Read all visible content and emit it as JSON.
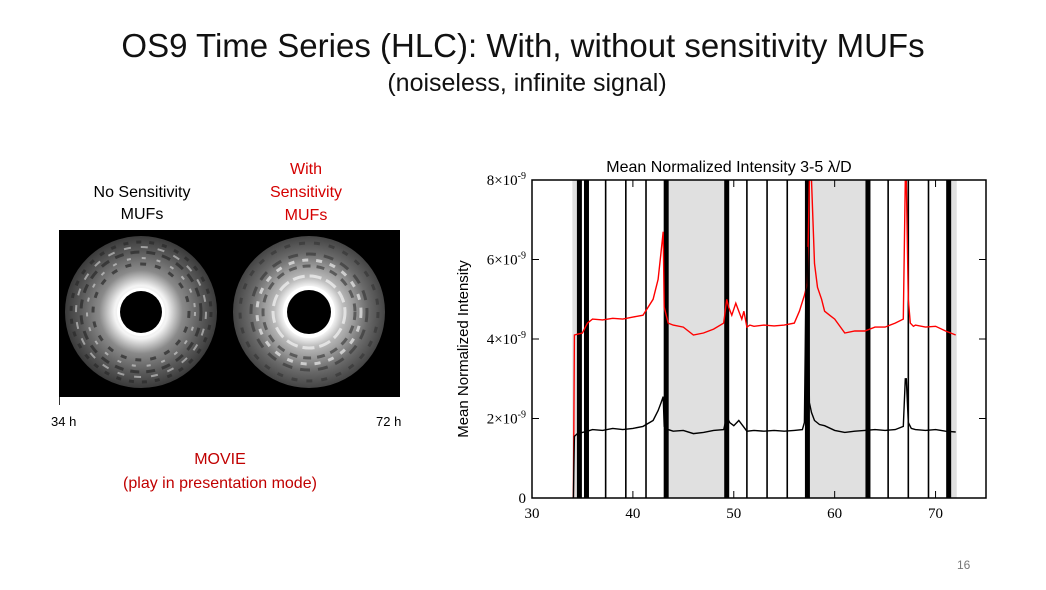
{
  "slide": {
    "title": "OS9 Time Series (HLC): With, without sensitivity MUFs",
    "subtitle": "(noiseless, infinite signal)",
    "page_number": "16"
  },
  "movie": {
    "label_left_line1": "No Sensitivity",
    "label_left_line2": "MUFs",
    "label_right_line1": "With",
    "label_right_line2": "Sensitivity",
    "label_right_line3": "MUFs",
    "time_start": "34 h",
    "time_end": "72 h",
    "note_line1": "MOVIE",
    "note_line2": "(play in presentation mode)"
  },
  "colors": {
    "with_mufs": "#ff0000",
    "without_mufs": "#000000",
    "shade": "#e0e0e0",
    "label_red": "#d40000"
  },
  "chart_data": {
    "type": "line",
    "title": "Mean Normalized Intensity 3-5 λ/D",
    "xlabel": "",
    "ylabel": "Mean Normalized Intensity",
    "xlim": [
      30,
      75
    ],
    "ylim": [
      0,
      8e-09
    ],
    "xticks": [
      30,
      40,
      50,
      60,
      70
    ],
    "ytick_labels": [
      {
        "value": 0,
        "mant": "0",
        "exp": ""
      },
      {
        "value": 2e-09,
        "mant": "2×10",
        "exp": "-9"
      },
      {
        "value": 4e-09,
        "mant": "4×10",
        "exp": "-9"
      },
      {
        "value": 6e-09,
        "mant": "6×10",
        "exp": "-9"
      },
      {
        "value": 8e-09,
        "mant": "8×10",
        "exp": "-9"
      }
    ],
    "shaded_regions": [
      [
        34.0,
        34.6
      ],
      [
        43.3,
        49.3
      ],
      [
        57.4,
        63.3
      ],
      [
        71.3,
        72.1
      ]
    ],
    "vertical_lines": [
      {
        "x": 34.7,
        "thick": true
      },
      {
        "x": 35.4,
        "thick": true
      },
      {
        "x": 37.3,
        "thick": false
      },
      {
        "x": 39.3,
        "thick": false
      },
      {
        "x": 41.3,
        "thick": false
      },
      {
        "x": 43.3,
        "thick": true
      },
      {
        "x": 49.3,
        "thick": true
      },
      {
        "x": 51.3,
        "thick": false
      },
      {
        "x": 53.3,
        "thick": false
      },
      {
        "x": 55.3,
        "thick": false
      },
      {
        "x": 57.3,
        "thick": true
      },
      {
        "x": 63.3,
        "thick": true
      },
      {
        "x": 65.3,
        "thick": false
      },
      {
        "x": 67.3,
        "thick": false
      },
      {
        "x": 69.3,
        "thick": false
      },
      {
        "x": 71.3,
        "thick": true
      }
    ],
    "series": [
      {
        "color": "#ff0000",
        "x": [
          34.1,
          34.2,
          34.5,
          35.0,
          35.5,
          36.0,
          37.0,
          38.0,
          39.0,
          40.0,
          41.0,
          42.0,
          42.5,
          42.8,
          43.0,
          43.1,
          43.5,
          44.0,
          45.0,
          46.0,
          47.0,
          48.0,
          49.0,
          49.3,
          49.5,
          49.8,
          50.2,
          50.5,
          50.8,
          51.0,
          51.3,
          51.6,
          52.0,
          53.0,
          54.0,
          55.0,
          56.0,
          56.5,
          57.0,
          57.3,
          57.5,
          57.7,
          58.0,
          58.3,
          58.7,
          59.0,
          59.5,
          60.0,
          61.0,
          62.0,
          63.0,
          64.0,
          65.0,
          66.0,
          66.8,
          67.0,
          67.1,
          67.3,
          67.5,
          67.8,
          68.0,
          69.0,
          70.0,
          71.0,
          72.0
        ],
        "y": [
          0,
          4.1e-09,
          4.12e-09,
          4.15e-09,
          4.4e-09,
          4.5e-09,
          4.48e-09,
          4.52e-09,
          4.5e-09,
          4.55e-09,
          4.6e-09,
          5e-09,
          5.5e-09,
          6.2e-09,
          6.7e-09,
          4.8e-09,
          4.4e-09,
          4.35e-09,
          4.3e-09,
          4.1e-09,
          4.15e-09,
          4.25e-09,
          4.4e-09,
          5e-09,
          4.8e-09,
          4.6e-09,
          4.9e-09,
          4.7e-09,
          4.5e-09,
          4.7e-09,
          4.3e-09,
          4.35e-09,
          4.32e-09,
          4.35e-09,
          4.33e-09,
          4.35e-09,
          4.4e-09,
          4.7e-09,
          5.1e-09,
          5.4e-09,
          8e-09,
          8e-09,
          5.9e-09,
          5.3e-09,
          5e-09,
          4.7e-09,
          4.6e-09,
          4.5e-09,
          4.15e-09,
          4.2e-09,
          4.2e-09,
          4.3e-09,
          4.3e-09,
          4.4e-09,
          4.5e-09,
          8e-09,
          8e-09,
          5e-09,
          4.4e-09,
          4.32e-09,
          4.35e-09,
          4.3e-09,
          4.32e-09,
          4.2e-09,
          4.1e-09
        ]
      },
      {
        "color": "#000000",
        "x": [
          34.1,
          34.2,
          34.5,
          35.0,
          35.5,
          36.0,
          37.0,
          38.0,
          39.0,
          40.0,
          41.0,
          42.0,
          42.5,
          42.8,
          43.0,
          43.1,
          43.5,
          44.0,
          45.0,
          46.0,
          47.0,
          48.0,
          49.0,
          49.3,
          49.6,
          50.0,
          50.5,
          51.0,
          51.3,
          52.0,
          53.0,
          54.0,
          55.0,
          56.0,
          56.8,
          57.0,
          57.2,
          57.3,
          57.5,
          57.7,
          58.0,
          58.5,
          59.0,
          60.0,
          61.0,
          62.0,
          63.0,
          64.0,
          65.0,
          66.0,
          66.8,
          67.0,
          67.1,
          67.3,
          67.6,
          68.0,
          69.0,
          70.0,
          71.0,
          72.0
        ],
        "y": [
          0,
          1.55e-09,
          1.62e-09,
          1.65e-09,
          1.68e-09,
          1.72e-09,
          1.7e-09,
          1.75e-09,
          1.72e-09,
          1.75e-09,
          1.8e-09,
          1.95e-09,
          2.2e-09,
          2.4e-09,
          2.55e-09,
          1.8e-09,
          1.72e-09,
          1.68e-09,
          1.7e-09,
          1.62e-09,
          1.65e-09,
          1.7e-09,
          1.72e-09,
          2.05e-09,
          1.9e-09,
          1.82e-09,
          1.95e-09,
          1.78e-09,
          1.68e-09,
          1.7e-09,
          1.68e-09,
          1.7e-09,
          1.68e-09,
          1.7e-09,
          1.72e-09,
          1.9e-09,
          6.3e-09,
          6.3e-09,
          2.4e-09,
          2.15e-09,
          1.95e-09,
          1.85e-09,
          1.82e-09,
          1.7e-09,
          1.65e-09,
          1.68e-09,
          1.7e-09,
          1.72e-09,
          1.7e-09,
          1.72e-09,
          1.8e-09,
          3e-09,
          3e-09,
          1.9e-09,
          1.75e-09,
          1.72e-09,
          1.7e-09,
          1.72e-09,
          1.68e-09,
          1.66e-09
        ]
      }
    ]
  }
}
